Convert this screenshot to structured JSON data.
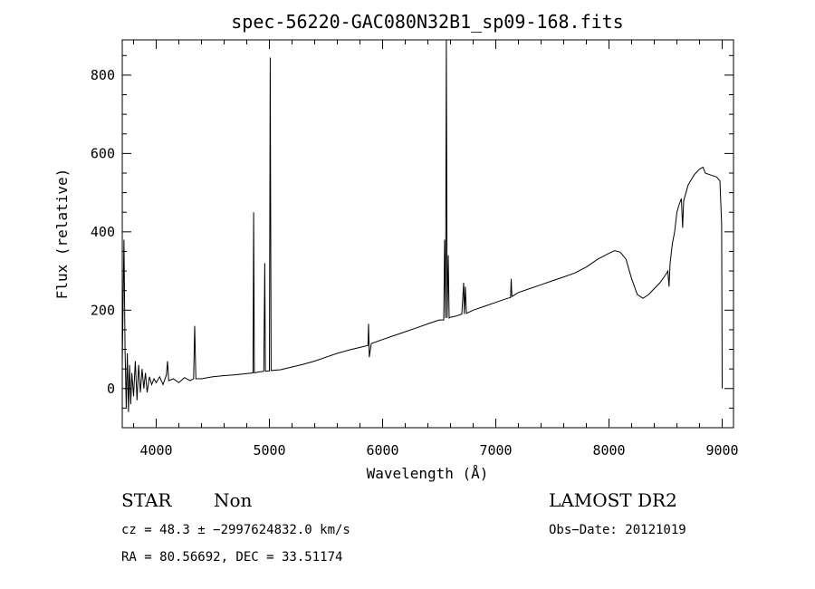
{
  "chart_data": {
    "type": "line",
    "title": "spec-56220-GAC080N32B1_sp09-168.fits",
    "xlabel": "Wavelength (Å)",
    "ylabel": "Flux (relative)",
    "xlim": [
      3700,
      9100
    ],
    "ylim": [
      -100,
      890
    ],
    "x_ticks": [
      4000,
      5000,
      6000,
      7000,
      8000,
      9000
    ],
    "y_ticks": [
      0,
      200,
      400,
      600,
      800
    ],
    "grid": false,
    "series": [
      {
        "points": [
          [
            3700,
            60
          ],
          [
            3715,
            380
          ],
          [
            3725,
            100
          ],
          [
            3735,
            -50
          ],
          [
            3745,
            90
          ],
          [
            3755,
            -60
          ],
          [
            3765,
            60
          ],
          [
            3775,
            -40
          ],
          [
            3785,
            40
          ],
          [
            3800,
            -20
          ],
          [
            3815,
            70
          ],
          [
            3830,
            -30
          ],
          [
            3845,
            60
          ],
          [
            3860,
            -10
          ],
          [
            3875,
            50
          ],
          [
            3890,
            0
          ],
          [
            3905,
            40
          ],
          [
            3920,
            -10
          ],
          [
            3940,
            30
          ],
          [
            3960,
            10
          ],
          [
            3980,
            25
          ],
          [
            4000,
            15
          ],
          [
            4030,
            30
          ],
          [
            4060,
            10
          ],
          [
            4090,
            35
          ],
          [
            4100,
            70
          ],
          [
            4110,
            20
          ],
          [
            4150,
            25
          ],
          [
            4200,
            15
          ],
          [
            4250,
            28
          ],
          [
            4300,
            20
          ],
          [
            4330,
            25
          ],
          [
            4340,
            160
          ],
          [
            4350,
            25
          ],
          [
            4400,
            25
          ],
          [
            4500,
            30
          ],
          [
            4600,
            33
          ],
          [
            4700,
            35
          ],
          [
            4800,
            38
          ],
          [
            4855,
            40
          ],
          [
            4861,
            450
          ],
          [
            4867,
            40
          ],
          [
            4900,
            42
          ],
          [
            4950,
            44
          ],
          [
            4959,
            320
          ],
          [
            4965,
            44
          ],
          [
            5000,
            45
          ],
          [
            5007,
            845
          ],
          [
            5015,
            46
          ],
          [
            5100,
            48
          ],
          [
            5200,
            55
          ],
          [
            5300,
            62
          ],
          [
            5400,
            70
          ],
          [
            5500,
            80
          ],
          [
            5600,
            90
          ],
          [
            5700,
            98
          ],
          [
            5800,
            105
          ],
          [
            5870,
            110
          ],
          [
            5876,
            165
          ],
          [
            5882,
            80
          ],
          [
            5900,
            115
          ],
          [
            6000,
            125
          ],
          [
            6100,
            135
          ],
          [
            6200,
            145
          ],
          [
            6300,
            155
          ],
          [
            6400,
            165
          ],
          [
            6500,
            175
          ],
          [
            6540,
            175
          ],
          [
            6548,
            380
          ],
          [
            6556,
            180
          ],
          [
            6563,
            890
          ],
          [
            6570,
            180
          ],
          [
            6580,
            340
          ],
          [
            6588,
            180
          ],
          [
            6600,
            182
          ],
          [
            6650,
            185
          ],
          [
            6700,
            190
          ],
          [
            6716,
            270
          ],
          [
            6722,
            190
          ],
          [
            6731,
            260
          ],
          [
            6740,
            192
          ],
          [
            6800,
            200
          ],
          [
            6900,
            210
          ],
          [
            7000,
            220
          ],
          [
            7100,
            230
          ],
          [
            7130,
            232
          ],
          [
            7136,
            280
          ],
          [
            7142,
            235
          ],
          [
            7200,
            245
          ],
          [
            7300,
            255
          ],
          [
            7400,
            265
          ],
          [
            7500,
            275
          ],
          [
            7600,
            285
          ],
          [
            7700,
            295
          ],
          [
            7800,
            310
          ],
          [
            7900,
            330
          ],
          [
            8000,
            345
          ],
          [
            8050,
            352
          ],
          [
            8100,
            348
          ],
          [
            8150,
            330
          ],
          [
            8200,
            280
          ],
          [
            8250,
            240
          ],
          [
            8300,
            230
          ],
          [
            8350,
            240
          ],
          [
            8400,
            255
          ],
          [
            8450,
            270
          ],
          [
            8500,
            290
          ],
          [
            8520,
            300
          ],
          [
            8530,
            260
          ],
          [
            8540,
            320
          ],
          [
            8560,
            370
          ],
          [
            8580,
            400
          ],
          [
            8600,
            450
          ],
          [
            8620,
            470
          ],
          [
            8640,
            485
          ],
          [
            8650,
            410
          ],
          [
            8660,
            480
          ],
          [
            8700,
            520
          ],
          [
            8750,
            545
          ],
          [
            8800,
            560
          ],
          [
            8830,
            565
          ],
          [
            8850,
            550
          ],
          [
            8900,
            545
          ],
          [
            8950,
            540
          ],
          [
            8980,
            530
          ],
          [
            8995,
            420
          ],
          [
            9000,
            0
          ]
        ]
      }
    ]
  },
  "info": {
    "object_class": "STAR",
    "subclass": "Non",
    "survey": "LAMOST DR2",
    "cz_line": "cz = 48.3 ± −2997624832.0 km/s",
    "obs_date": "Obs−Date: 20121019",
    "radec_line": "RA =  80.56692, DEC =  33.51174"
  }
}
